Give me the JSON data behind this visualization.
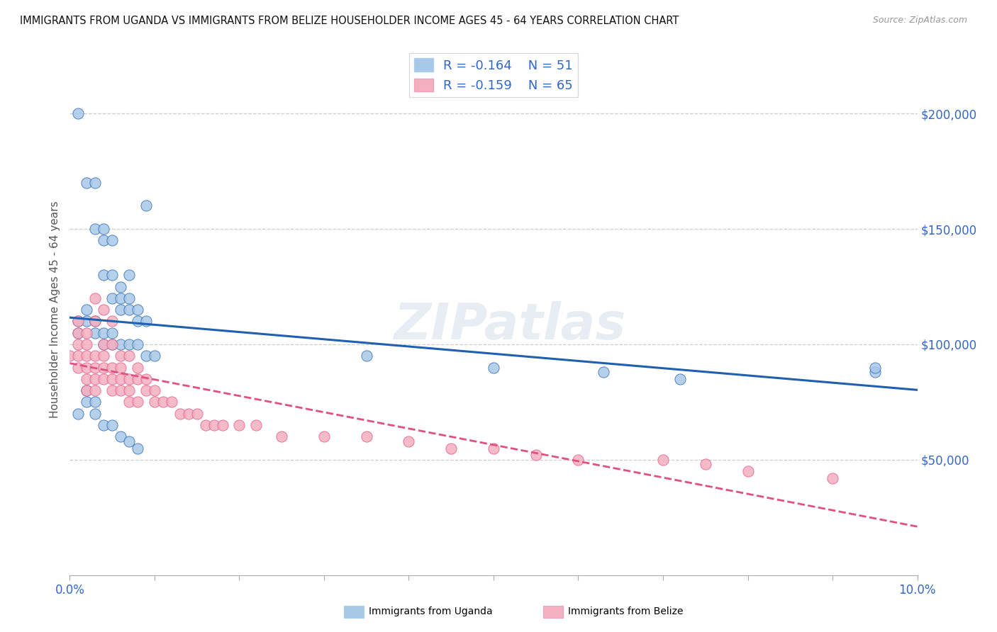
{
  "title": "IMMIGRANTS FROM UGANDA VS IMMIGRANTS FROM BELIZE HOUSEHOLDER INCOME AGES 45 - 64 YEARS CORRELATION CHART",
  "source": "Source: ZipAtlas.com",
  "ylabel": "Householder Income Ages 45 - 64 years",
  "legend_r_uganda": "-0.164",
  "legend_n_uganda": "51",
  "legend_r_belize": "-0.159",
  "legend_n_belize": "65",
  "xlim": [
    0.0,
    0.1
  ],
  "ylim": [
    0,
    230000
  ],
  "yticks_right": [
    50000,
    100000,
    150000,
    200000
  ],
  "ytick_labels_right": [
    "$50,000",
    "$100,000",
    "$150,000",
    "$200,000"
  ],
  "color_uganda": "#a8c8e8",
  "color_belize": "#f4afc0",
  "color_line_uganda": "#2060b0",
  "color_line_belize": "#e05080",
  "watermark": "ZIPatlas",
  "uganda_x": [
    0.001,
    0.002,
    0.003,
    0.003,
    0.004,
    0.004,
    0.004,
    0.005,
    0.005,
    0.005,
    0.006,
    0.006,
    0.006,
    0.007,
    0.007,
    0.007,
    0.008,
    0.008,
    0.009,
    0.009,
    0.001,
    0.001,
    0.002,
    0.002,
    0.003,
    0.003,
    0.004,
    0.004,
    0.005,
    0.005,
    0.006,
    0.007,
    0.008,
    0.009,
    0.01,
    0.001,
    0.002,
    0.002,
    0.003,
    0.003,
    0.004,
    0.005,
    0.006,
    0.007,
    0.008,
    0.035,
    0.05,
    0.063,
    0.072,
    0.095,
    0.095
  ],
  "uganda_y": [
    200000,
    170000,
    170000,
    150000,
    150000,
    145000,
    130000,
    145000,
    130000,
    120000,
    125000,
    115000,
    120000,
    130000,
    120000,
    115000,
    115000,
    110000,
    160000,
    110000,
    110000,
    105000,
    110000,
    115000,
    110000,
    105000,
    105000,
    100000,
    105000,
    100000,
    100000,
    100000,
    100000,
    95000,
    95000,
    70000,
    80000,
    75000,
    75000,
    70000,
    65000,
    65000,
    60000,
    58000,
    55000,
    95000,
    90000,
    88000,
    85000,
    88000,
    90000
  ],
  "belize_x": [
    0.0,
    0.001,
    0.001,
    0.001,
    0.001,
    0.001,
    0.002,
    0.002,
    0.002,
    0.002,
    0.002,
    0.002,
    0.003,
    0.003,
    0.003,
    0.003,
    0.003,
    0.003,
    0.004,
    0.004,
    0.004,
    0.004,
    0.004,
    0.005,
    0.005,
    0.005,
    0.005,
    0.005,
    0.006,
    0.006,
    0.006,
    0.006,
    0.007,
    0.007,
    0.007,
    0.007,
    0.008,
    0.008,
    0.008,
    0.009,
    0.009,
    0.01,
    0.01,
    0.011,
    0.012,
    0.013,
    0.014,
    0.015,
    0.016,
    0.017,
    0.018,
    0.02,
    0.022,
    0.025,
    0.03,
    0.035,
    0.04,
    0.045,
    0.05,
    0.055,
    0.06,
    0.07,
    0.075,
    0.08,
    0.09
  ],
  "belize_y": [
    95000,
    110000,
    100000,
    105000,
    95000,
    90000,
    105000,
    95000,
    100000,
    90000,
    85000,
    80000,
    120000,
    110000,
    95000,
    90000,
    85000,
    80000,
    115000,
    100000,
    95000,
    90000,
    85000,
    110000,
    100000,
    90000,
    85000,
    80000,
    95000,
    90000,
    85000,
    80000,
    95000,
    85000,
    80000,
    75000,
    90000,
    85000,
    75000,
    85000,
    80000,
    80000,
    75000,
    75000,
    75000,
    70000,
    70000,
    70000,
    65000,
    65000,
    65000,
    65000,
    65000,
    60000,
    60000,
    60000,
    58000,
    55000,
    55000,
    52000,
    50000,
    50000,
    48000,
    45000,
    42000
  ]
}
